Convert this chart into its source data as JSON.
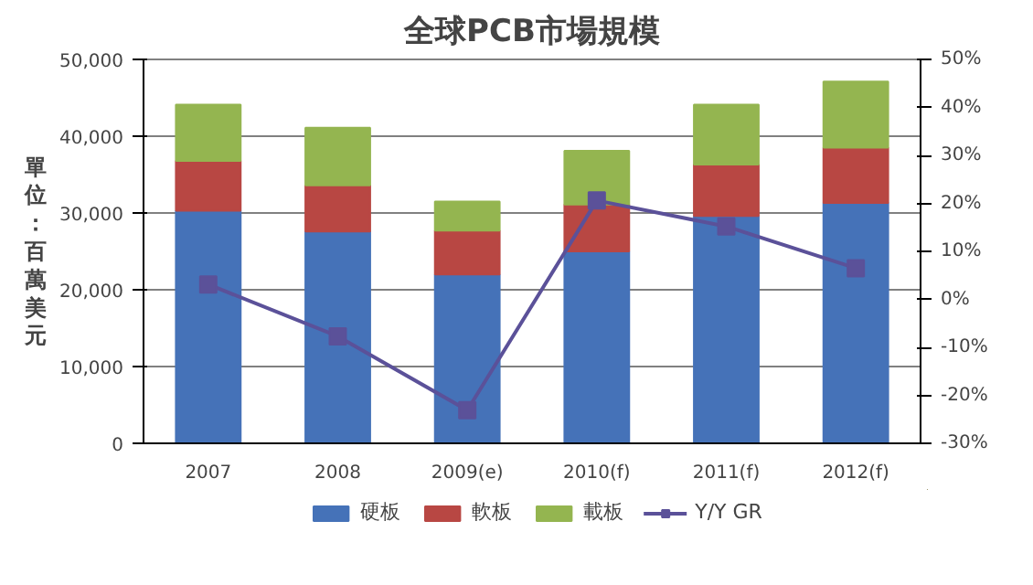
{
  "chart_data": {
    "type": "bar",
    "title": "全球PCB市場規模",
    "ylabel": "單位：百萬美元",
    "stacked": true,
    "categories": [
      "2007",
      "2008",
      "2009(e)",
      "2010(f)",
      "2011(f)",
      "2012(f)"
    ],
    "series": [
      {
        "name": "硬板",
        "color": "#4572b8",
        "values": [
          30300,
          27600,
          22000,
          25000,
          29600,
          31300
        ]
      },
      {
        "name": "軟板",
        "color": "#b84743",
        "values": [
          6500,
          6000,
          5700,
          6100,
          6700,
          7200
        ]
      },
      {
        "name": "載板",
        "color": "#94b550",
        "values": [
          7300,
          7500,
          3800,
          7000,
          7800,
          8600
        ]
      },
      {
        "name": "Y/Y GR",
        "type": "line",
        "axis": "y2",
        "color": "#5b5199",
        "marker": "square",
        "values": [
          3.1,
          -7.7,
          -23.1,
          20.6,
          15.2,
          6.5
        ]
      }
    ],
    "ylim": [
      0,
      50000
    ],
    "yticks": [
      {
        "value": 0,
        "label": "0"
      },
      {
        "value": 10000,
        "label": "10,000"
      },
      {
        "value": 20000,
        "label": "20,000"
      },
      {
        "value": 30000,
        "label": "30,000"
      },
      {
        "value": 40000,
        "label": "40,000"
      },
      {
        "value": 50000,
        "label": "50,000"
      }
    ],
    "y2lim": [
      -30,
      50
    ],
    "y2ticks": [
      {
        "value": -30,
        "label": "-30%"
      },
      {
        "value": -20,
        "label": "-20%"
      },
      {
        "value": -10,
        "label": "-10%"
      },
      {
        "value": 0,
        "label": "0%"
      },
      {
        "value": 10,
        "label": "10%"
      },
      {
        "value": 20,
        "label": "20%"
      },
      {
        "value": 30,
        "label": "30%"
      },
      {
        "value": 40,
        "label": "40%"
      },
      {
        "value": 50,
        "label": "50%"
      }
    ],
    "grid": "y",
    "legend": "bottom"
  }
}
